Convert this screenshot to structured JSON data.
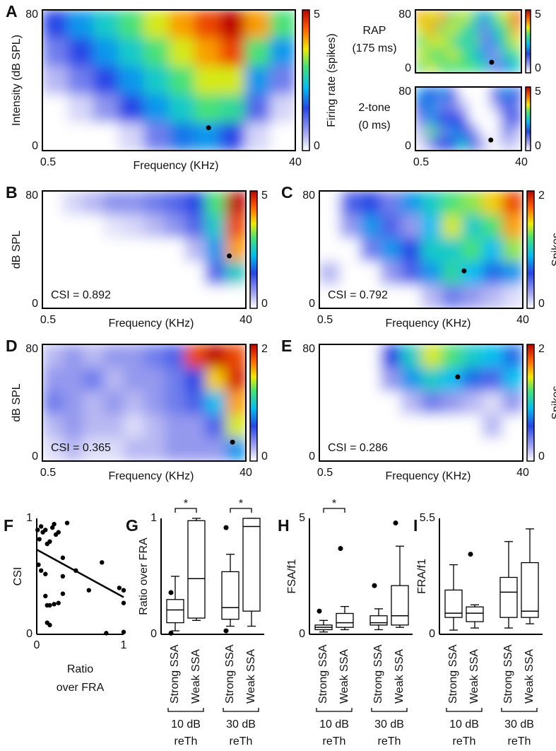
{
  "chart_data": [
    {
      "type": "heatmap",
      "panel": "A",
      "xlabel": "Frequency (KHz)",
      "ylabel": "Intensity (dB SPL)",
      "colorbar_label": "Firing rate (spikes)",
      "log_x": true,
      "xlim": [
        0.5,
        40
      ],
      "xticks": [
        0.5,
        40
      ],
      "ylim": [
        0,
        80
      ],
      "yticks": [
        80,
        0
      ],
      "zlim": [
        0,
        5
      ],
      "zticks": [
        5,
        0
      ],
      "z": [
        [
          1.5,
          2,
          2.5,
          3,
          3.5,
          4,
          4.5,
          5,
          4,
          3
        ],
        [
          1,
          1.5,
          2,
          2.5,
          3,
          3.5,
          4,
          4.5,
          3,
          2
        ],
        [
          0.5,
          1,
          1.5,
          2,
          2.5,
          3,
          3.5,
          3.5,
          2,
          1
        ],
        [
          0,
          0.3,
          0.8,
          1.5,
          2,
          2.5,
          3,
          2.8,
          1.2,
          0.3
        ],
        [
          0,
          0,
          0,
          0.3,
          1,
          1.8,
          2,
          1.5,
          0.3,
          0
        ]
      ],
      "point": [
        8.9,
        13
      ]
    },
    {
      "type": "heatmap",
      "label": [
        "RAP",
        "(175 ms)"
      ],
      "log_x": true,
      "xlim": [
        0.5,
        40
      ],
      "ylim": [
        0,
        80
      ],
      "yticks": [
        80,
        0
      ],
      "zlim": [
        0,
        5
      ],
      "zticks": [
        5,
        0
      ],
      "z": [
        [
          4,
          3.5,
          4,
          3,
          3.5,
          3,
          2,
          3,
          3.5,
          4.5
        ],
        [
          3.5,
          4,
          3,
          3.5,
          3,
          2.5,
          1,
          2.5,
          3,
          4
        ],
        [
          3,
          3.5,
          3.5,
          3,
          2.5,
          3,
          1,
          2,
          3,
          3.5
        ],
        [
          3.5,
          3,
          3,
          3.5,
          3,
          2.5,
          2,
          0.8,
          2.5,
          3
        ],
        [
          3,
          3.5,
          3,
          3,
          3,
          3,
          2.5,
          1,
          2,
          2.5
        ]
      ],
      "point": [
        11.7,
        13.5
      ]
    },
    {
      "type": "heatmap",
      "label": [
        "2-tone",
        "(0 ms)"
      ],
      "log_x": true,
      "xlim": [
        0.5,
        40
      ],
      "xticks": [
        0.5,
        40
      ],
      "ylim": [
        0,
        80
      ],
      "yticks": [
        80,
        0
      ],
      "zlim": [
        0,
        5
      ],
      "zticks": [
        5,
        0
      ],
      "z": [
        [
          2,
          1.5,
          2,
          1.5,
          0,
          0,
          0,
          1.5,
          2,
          1.5
        ],
        [
          1.5,
          2,
          1,
          1,
          0.5,
          0,
          0,
          0.5,
          1.5,
          1
        ],
        [
          1,
          2,
          1.5,
          1.5,
          1.5,
          0,
          0,
          0,
          1,
          1.5
        ],
        [
          0.5,
          3,
          1,
          2,
          1.5,
          1,
          0,
          0,
          1,
          0.5
        ],
        [
          0.2,
          1,
          1.5,
          1.5,
          2.5,
          1.5,
          0.5,
          0,
          0.5,
          0.3
        ]
      ],
      "point": [
        11.3,
        13.3
      ]
    },
    {
      "type": "heatmap",
      "panel": "B",
      "xlabel": "Frequency (KHz)",
      "ylabel": "dB SPL",
      "annotation": "CSI = 0.892",
      "log_x": true,
      "xlim": [
        0.5,
        40
      ],
      "xticks": [
        0.5,
        40
      ],
      "ylim": [
        0,
        80
      ],
      "yticks": [
        80,
        0
      ],
      "zlim": [
        0,
        5
      ],
      "zticks": [
        5,
        0
      ],
      "z": [
        [
          0,
          0.3,
          0.5,
          0.8,
          0.8,
          1,
          1.2,
          1.5,
          3,
          5
        ],
        [
          0,
          0,
          0,
          0.2,
          0.3,
          0.5,
          0.8,
          1.2,
          2.5,
          4.5
        ],
        [
          0,
          0,
          0,
          0,
          0,
          0,
          0,
          0.5,
          2,
          4
        ],
        [
          0,
          0,
          0,
          0,
          0,
          0,
          0,
          0,
          1.2,
          2.5
        ],
        [
          0,
          0,
          0,
          0,
          0,
          0,
          0,
          0,
          0,
          0
        ]
      ],
      "point": [
        28,
        35.7
      ]
    },
    {
      "type": "heatmap",
      "panel": "C",
      "xlabel": "Frequency (KHz)",
      "colorbar_label": "Spikes",
      "annotation": "CSI = 0.792",
      "log_x": true,
      "xlim": [
        0.5,
        40
      ],
      "xticks": [
        0.5,
        40
      ],
      "ylim": [
        0,
        80
      ],
      "yticks": [
        80,
        0
      ],
      "zlim": [
        0,
        2
      ],
      "zticks": [
        2,
        0
      ],
      "z": [
        [
          0,
          0.5,
          0.6,
          0.4,
          0.8,
          1,
          1.2,
          1.3,
          1.5,
          1.8
        ],
        [
          0,
          0.3,
          0.8,
          0.5,
          0.3,
          0.9,
          1.4,
          1,
          1.2,
          1.6
        ],
        [
          0,
          0,
          0.4,
          0.8,
          0.6,
          1,
          1,
          1.2,
          0.9,
          1.3
        ],
        [
          0.2,
          0,
          0,
          0.3,
          0.5,
          0.8,
          1.1,
          0.9,
          0.7,
          0.8
        ],
        [
          0,
          0,
          0,
          0,
          0,
          0.2,
          0.4,
          0.3,
          0.2,
          0.1
        ]
      ],
      "point": [
        11.3,
        25.5
      ]
    },
    {
      "type": "heatmap",
      "panel": "D",
      "xlabel": "Frequency (KHz)",
      "ylabel": "dB SPL",
      "annotation": "CSI = 0.365",
      "log_x": true,
      "xlim": [
        0.5,
        40
      ],
      "xticks": [
        0.5,
        40
      ],
      "ylim": [
        0,
        80
      ],
      "yticks": [
        80,
        0
      ],
      "zlim": [
        0,
        2
      ],
      "zticks": [
        2,
        0
      ],
      "z": [
        [
          0.2,
          0.3,
          0.2,
          0.3,
          0.3,
          0.4,
          0.5,
          1.8,
          2,
          1.8
        ],
        [
          0.3,
          0.3,
          0.4,
          0.2,
          0.3,
          0.3,
          0.4,
          0.6,
          1.5,
          1.9
        ],
        [
          0.4,
          0.3,
          0.2,
          0.3,
          0.2,
          0.3,
          0.4,
          0.5,
          0.9,
          1.6
        ],
        [
          0.2,
          0.3,
          0.2,
          0.2,
          0.1,
          0.2,
          0.3,
          0.3,
          0.5,
          1.4
        ],
        [
          0.1,
          0.2,
          0.1,
          0.1,
          0.2,
          0.2,
          0.3,
          0.3,
          0.3,
          0.8
        ]
      ],
      "point": [
        30,
        13
      ]
    },
    {
      "type": "heatmap",
      "panel": "E",
      "xlabel": "Frequency (KHz)",
      "colorbar_label": "Spikes",
      "annotation": "CSI = 0.286",
      "log_x": true,
      "xlim": [
        0.5,
        40
      ],
      "xticks": [
        0.5,
        40
      ],
      "ylim": [
        0,
        80
      ],
      "yticks": [
        80,
        0
      ],
      "zlim": [
        0,
        2
      ],
      "zticks": [
        2,
        0
      ],
      "z": [
        [
          0,
          0,
          0,
          0.6,
          1,
          1.4,
          1.2,
          1,
          0.9,
          0.7
        ],
        [
          0,
          0,
          0,
          0.3,
          0.8,
          1,
          0.9,
          0.7,
          0.5,
          0.9
        ],
        [
          0,
          0,
          0,
          0,
          0.2,
          0.4,
          0.3,
          0.2,
          0.1,
          0.3
        ],
        [
          0,
          0,
          0,
          0,
          0,
          0,
          0,
          0,
          0.2,
          0
        ],
        [
          0,
          0,
          0,
          0,
          0,
          0,
          0,
          0,
          0,
          0
        ]
      ],
      "point": [
        9.85,
        57.7
      ]
    },
    {
      "type": "scatter",
      "panel": "F",
      "ylabel": "CSI",
      "xlabel": [
        "Ratio",
        "over FRA"
      ],
      "xlim": [
        0,
        1
      ],
      "xticks": [
        0,
        1
      ],
      "ylim": [
        0,
        1
      ],
      "yticks": [
        0,
        1
      ],
      "x": [
        0.01,
        0.03,
        0.05,
        0.07,
        0.1,
        0.12,
        0.15,
        0.18,
        0.2,
        0.22,
        0.25,
        0.3,
        0.35,
        0.02,
        0.05,
        0.1,
        0.3,
        0.45,
        0.6,
        0.75,
        0.95,
        1,
        0.12,
        0.15,
        0.2,
        0.25,
        0.3,
        0.12,
        0.15,
        0.8,
        1,
        1,
        0.1
      ],
      "y": [
        0.9,
        0.82,
        0.93,
        0.88,
        0.9,
        0.78,
        0.8,
        0.92,
        0.95,
        0.86,
        0.88,
        0.66,
        0.96,
        0.6,
        0.55,
        0.52,
        0.5,
        0.55,
        0.38,
        0.62,
        0.4,
        0.38,
        0.25,
        0.25,
        0.26,
        0.27,
        0.35,
        0.1,
        0.08,
        0.01,
        0.02,
        0.27,
        0.33
      ],
      "fit": {
        "intercept": 0.73,
        "slope": -0.41
      }
    },
    {
      "type": "box",
      "panel": "G",
      "ylabel": "Ratio over FRA",
      "ylim": [
        0,
        1
      ],
      "yticks": [
        0,
        1
      ],
      "categories": [
        "Strong SSA",
        "Weak SSA",
        "Strong SSA",
        "Weak SSA"
      ],
      "groups": [
        [
          "10 dB",
          "reTh"
        ],
        [
          "30 dB",
          "reTh"
        ]
      ],
      "boxes": [
        {
          "min": 0.03,
          "q1": 0.1,
          "median": 0.21,
          "q3": 0.3,
          "max": 0.5,
          "outliers": [
            0.36,
            0.01
          ]
        },
        {
          "min": 0.12,
          "q1": 0.14,
          "median": 0.48,
          "q3": 0.98,
          "max": 1.0,
          "outliers": []
        },
        {
          "min": 0.07,
          "q1": 0.13,
          "median": 0.23,
          "q3": 0.54,
          "max": 0.69,
          "outliers": [
            0.92,
            0.03
          ]
        },
        {
          "min": 0.07,
          "q1": 0.2,
          "median": 0.93,
          "q3": 1.0,
          "max": 1.0,
          "outliers": []
        }
      ],
      "significance": [
        {
          "pair": [
            0,
            1
          ],
          "label": "*"
        },
        {
          "pair": [
            2,
            3
          ],
          "label": "*"
        }
      ]
    },
    {
      "type": "box",
      "panel": "H",
      "ylabel": "FSA/f1",
      "ylim": [
        0,
        5
      ],
      "yticks": [
        0,
        5
      ],
      "categories": [
        "Strong SSA",
        "Weak SSA",
        "Strong SSA",
        "Weak SSA"
      ],
      "groups": [
        [
          "10 dB",
          "reTh"
        ],
        [
          "30 dB",
          "reTh"
        ]
      ],
      "boxes": [
        {
          "min": 0.1,
          "q1": 0.2,
          "median": 0.3,
          "q3": 0.4,
          "max": 0.6,
          "outliers": [
            1.0
          ]
        },
        {
          "min": 0.2,
          "q1": 0.3,
          "median": 0.5,
          "q3": 0.9,
          "max": 1.2,
          "outliers": [
            3.7
          ]
        },
        {
          "min": 0.2,
          "q1": 0.4,
          "median": 0.5,
          "q3": 0.8,
          "max": 1.1,
          "outliers": [
            2.1
          ]
        },
        {
          "min": 0.3,
          "q1": 0.4,
          "median": 0.8,
          "q3": 2.1,
          "max": 3.8,
          "outliers": [
            4.8
          ]
        }
      ],
      "significance": [
        {
          "pair": [
            0,
            1
          ],
          "label": "*"
        }
      ]
    },
    {
      "type": "box",
      "panel": "I",
      "ylabel": "FRA/f1",
      "ylim": [
        0,
        5.5
      ],
      "yticks": [
        0,
        5.5
      ],
      "categories": [
        "Strong SSA",
        "Weak SSA",
        "Strong SSA",
        "Weak SSA"
      ],
      "groups": [
        [
          "10 dB",
          "reTh"
        ],
        [
          "30 dB",
          "reTh"
        ]
      ],
      "boxes": [
        {
          "min": 0.2,
          "q1": 0.8,
          "median": 1.0,
          "q3": 2.1,
          "max": 3.3,
          "outliers": []
        },
        {
          "min": 0.3,
          "q1": 0.6,
          "median": 1.0,
          "q3": 1.3,
          "max": 1.4,
          "outliers": [
            3.8
          ]
        },
        {
          "min": 0.3,
          "q1": 0.8,
          "median": 2.0,
          "q3": 2.7,
          "max": 4.4,
          "outliers": []
        },
        {
          "min": 0.5,
          "q1": 0.8,
          "median": 1.1,
          "q3": 3.4,
          "max": 5.0,
          "outliers": []
        }
      ],
      "significance": []
    }
  ]
}
